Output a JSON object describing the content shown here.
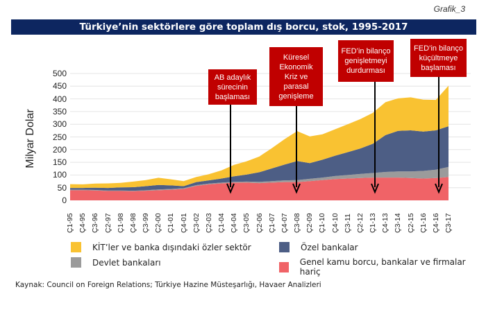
{
  "header": {
    "grafik_label": "Grafik_3",
    "title": "Türkiye’nin sektörlere göre toplam dış borcu, stok, 1995-2017"
  },
  "colors": {
    "kit_private": "#f9c232",
    "private_banks": "#4d5e85",
    "state_banks": "#9b9b9b",
    "general_gov": "#f06367",
    "title_bg": "#0d2660",
    "annotation_bg": "#c00000"
  },
  "annotations": [
    {
      "text": "AB adaylık sürecinin başlaması",
      "lines": [
        "AB adaylık",
        "sürecinin",
        "başlaması"
      ],
      "x_label": "Ç4-04"
    },
    {
      "text": "Küresel Ekonomik Kriz ve parasal genişleme",
      "lines": [
        "Küresel",
        "Ekonomik",
        "Kriz ve",
        "parasal",
        "genişleme"
      ],
      "x_label": "Ç3-08"
    },
    {
      "text": "FED’in bilanço genişletmeyi durdurması",
      "lines": [
        "FED’in bilanço",
        "genişletmeyi",
        "durdurması"
      ],
      "x_label": "Ç4-13"
    },
    {
      "text": "FED’in bilanço küçültmeye başlaması",
      "lines": [
        "FED’in bilanço",
        "küçültmeye",
        "başlaması"
      ],
      "x_label": "Ç4-16"
    }
  ],
  "legend": [
    {
      "label": "KİT’ler ve banka dışındaki özler sektör",
      "color": "#f9c232"
    },
    {
      "label": "Özel bankalar",
      "color": "#4d5e85"
    },
    {
      "label": "Devlet bankaları",
      "color": "#9b9b9b"
    },
    {
      "label": "Genel kamu borcu, bankalar ve firmalar hariç",
      "color": "#f06367"
    }
  ],
  "source": "Kaynak: Council on Foreign Relations;  Türkiye Hazine  Müsteşarlığı,  Havaer Analizleri",
  "chart_data": {
    "type": "area",
    "stacked": true,
    "title": "Türkiye’nin sektörlere göre toplam dış borcu, stok, 1995-2017",
    "xlabel": "",
    "ylabel": "Milyar Dolar",
    "ylim": [
      0,
      500
    ],
    "yticks": [
      0,
      50,
      100,
      150,
      200,
      250,
      300,
      350,
      400,
      450,
      500
    ],
    "grid": true,
    "legend_position": "bottom",
    "categories": [
      "Ç1-95",
      "Ç4-95",
      "Ç3-96",
      "Ç2-97",
      "Ç1-98",
      "Ç4-98",
      "Ç3-99",
      "Ç2-00",
      "Ç1-01",
      "Ç4-01",
      "Ç3-02",
      "Ç2-03",
      "Ç1-04",
      "Ç4-04",
      "Ç3-05",
      "Ç2-06",
      "Ç1-07",
      "Ç4-07",
      "Ç3-08",
      "Ç2-09",
      "Ç1-10",
      "Ç4-10",
      "Ç3-11",
      "Ç2-12",
      "Ç1-13",
      "Ç4-13",
      "Ç3-14",
      "Ç2-15",
      "Ç1-16",
      "Ç4-16",
      "Ç3-17"
    ],
    "series": [
      {
        "name": "Genel kamu borcu, bankalar ve firmalar hariç",
        "values": [
          40,
          40,
          39,
          37,
          37,
          36,
          38,
          40,
          42,
          45,
          57,
          63,
          67,
          70,
          70,
          68,
          70,
          72,
          72,
          76,
          80,
          84,
          86,
          88,
          90,
          90,
          90,
          88,
          86,
          88,
          92
        ]
      },
      {
        "name": "Devlet bankaları",
        "values": [
          2,
          2,
          2,
          2,
          2,
          2,
          2,
          3,
          3,
          3,
          3,
          3,
          3,
          3,
          4,
          5,
          6,
          7,
          8,
          9,
          10,
          12,
          14,
          16,
          18,
          22,
          24,
          26,
          30,
          33,
          40
        ]
      },
      {
        "name": "Özel bankalar",
        "values": [
          7,
          7,
          9,
          10,
          12,
          14,
          16,
          18,
          14,
          8,
          12,
          13,
          16,
          22,
          28,
          38,
          50,
          62,
          75,
          62,
          70,
          80,
          90,
          100,
          115,
          145,
          160,
          162,
          155,
          155,
          160
        ]
      },
      {
        "name": "KİT’ler ve banka dışındaki özler sektör",
        "values": [
          15,
          14,
          16,
          18,
          18,
          22,
          24,
          28,
          24,
          20,
          20,
          24,
          32,
          45,
          52,
          62,
          80,
          100,
          118,
          105,
          100,
          104,
          110,
          116,
          122,
          130,
          128,
          130,
          126,
          120,
          160
        ]
      }
    ]
  }
}
